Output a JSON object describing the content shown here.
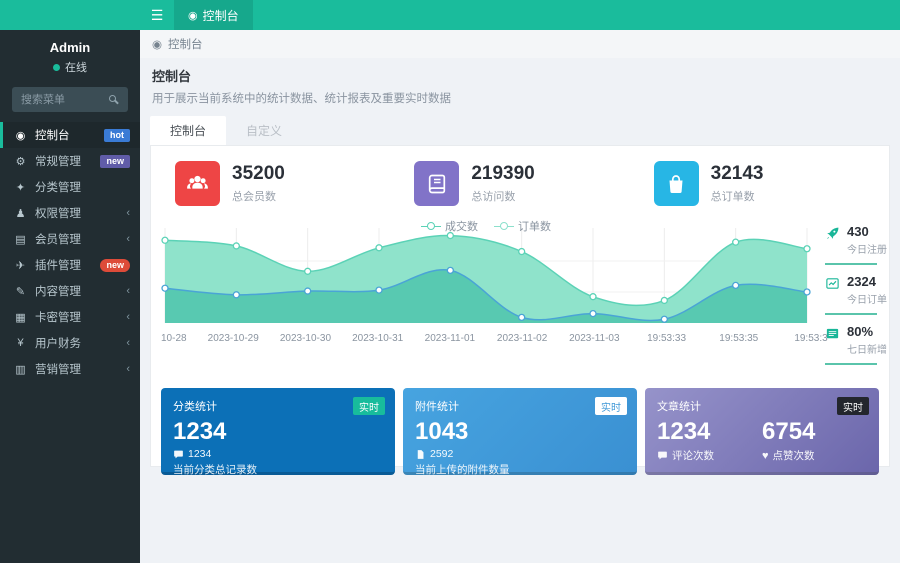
{
  "colors": {
    "accent": "#1abc9c",
    "topbar_tab": "#16a88c",
    "sidebar_bg": "#222d32",
    "hot_badge": "#3a7bd5",
    "new_badge_purple": "#605ca8",
    "new_badge_red": "#dd4b39",
    "stat_red": "#ee4545",
    "stat_purple": "#8173c8",
    "stat_cyan": "#27b6e5",
    "card1_bg": "#0c70b7",
    "card2_bg": "#3f98d7",
    "card3_bg": "#7b76b5",
    "series1": "#5bd2b6",
    "series2": "#4aa4d6"
  },
  "glyphs": {
    "hamburger": "☰",
    "dashboard": "◉",
    "cogs": "⚙",
    "tags": "✦",
    "users": "♟",
    "list": "▤",
    "plane": "✈",
    "edit": "✎",
    "card": "▦",
    "yen": "¥",
    "chart": "▥",
    "chevron": "‹",
    "heart": "♥"
  },
  "topbar": {
    "active_tab": "控制台"
  },
  "sidebar": {
    "user": {
      "name": "Admin",
      "status": "在线"
    },
    "search_placeholder": "搜索菜单",
    "items": [
      {
        "label": "控制台",
        "icon": "dashboard-icon",
        "badge": "hot",
        "active": true
      },
      {
        "label": "常规管理",
        "icon": "cogs-icon",
        "badge": "new"
      },
      {
        "label": "分类管理",
        "icon": "tags-icon"
      },
      {
        "label": "权限管理",
        "icon": "users-icon",
        "chevron": true
      },
      {
        "label": "会员管理",
        "icon": "list-icon",
        "chevron": true
      },
      {
        "label": "插件管理",
        "icon": "paper-plane-icon",
        "badge": "new"
      },
      {
        "label": "内容管理",
        "icon": "content-icon",
        "chevron": true
      },
      {
        "label": "卡密管理",
        "icon": "card-icon",
        "chevron": true
      },
      {
        "label": "用户财务",
        "icon": "yen-icon",
        "chevron": true
      },
      {
        "label": "营销管理",
        "icon": "bar-chart-icon",
        "chevron": true
      }
    ]
  },
  "breadcrumb": "控制台",
  "page": {
    "title": "控制台",
    "subtitle": "用于展示当前系统中的统计数据、统计报表及重要实时数据"
  },
  "tabs": [
    {
      "label": "控制台",
      "active": true
    },
    {
      "label": "自定义",
      "active": false
    }
  ],
  "stats": [
    {
      "value": "35200",
      "label": "总会员数",
      "icon": "users-group-icon"
    },
    {
      "value": "219390",
      "label": "总访问数",
      "icon": "book-icon"
    },
    {
      "value": "32143",
      "label": "总订单数",
      "icon": "shopping-bag-icon"
    }
  ],
  "chart_data": {
    "type": "area",
    "title": "",
    "x": [
      "10-28",
      "2023-10-29",
      "2023-10-30",
      "2023-10-31",
      "2023-11-01",
      "2023-11-02",
      "2023-11-03",
      "19:53:33",
      "19:53:35",
      "19:53:3"
    ],
    "series": [
      {
        "name": "成交数",
        "values": [
          88,
          82,
          55,
          80,
          93,
          76,
          28,
          24,
          86,
          79
        ],
        "line_color": "#5bd2b6",
        "fill_color": "#8fe3cb"
      },
      {
        "name": "订单数",
        "values": [
          37,
          30,
          34,
          35,
          56,
          6,
          10,
          4,
          40,
          33
        ],
        "line_color": "#4aa4d6",
        "fill_color": "#58c9b1"
      }
    ],
    "ylim": [
      0,
      100
    ],
    "grid": true,
    "legend_position": "top-center"
  },
  "mini_stats": [
    {
      "value": "430",
      "label": "今日注册",
      "icon": "rocket-icon"
    },
    {
      "value": "2324",
      "label": "今日订单",
      "icon": "line-chart-icon"
    },
    {
      "value": "80%",
      "label": "七日新增",
      "icon": "card-list-icon"
    }
  ],
  "cards": [
    {
      "title": "分类统计",
      "badge": "实时",
      "value": "1234",
      "sub_icon": "comment-icon",
      "sub_value": "1234",
      "desc": "当前分类总记录数"
    },
    {
      "title": "附件统计",
      "badge": "实时",
      "value": "1043",
      "sub_icon": "file-icon",
      "sub_value": "2592",
      "desc": "当前上传的附件数量"
    },
    {
      "title": "文章统计",
      "badge": "实时",
      "metrics": [
        {
          "value": "1234",
          "icon": "comment-icon",
          "label": "评论次数"
        },
        {
          "value": "6754",
          "icon": "heart-icon",
          "label": "点赞次数"
        }
      ]
    }
  ]
}
